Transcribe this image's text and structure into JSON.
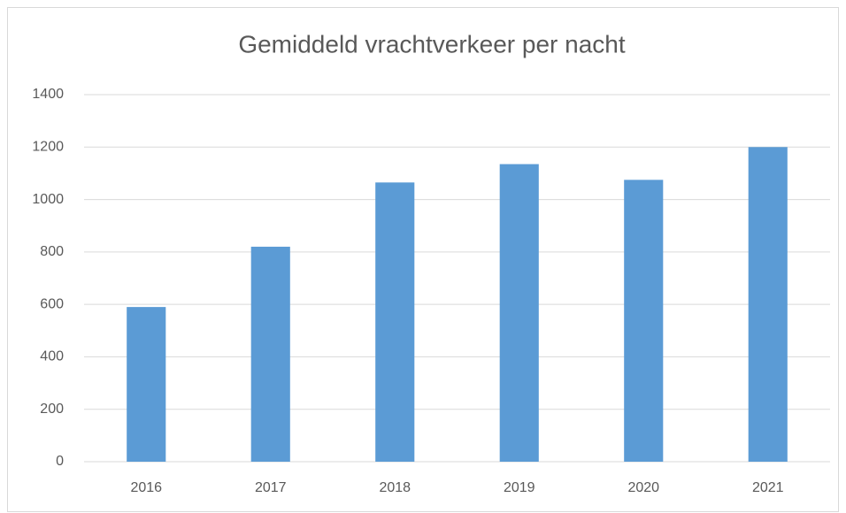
{
  "chart_data": {
    "type": "bar",
    "title": "Gemiddeld vrachtverkeer per nacht",
    "categories": [
      "2016",
      "2017",
      "2018",
      "2019",
      "2020",
      "2021"
    ],
    "values": [
      590,
      820,
      1065,
      1135,
      1075,
      1200
    ],
    "color": "#5b9bd5",
    "ylim": [
      0,
      1400
    ],
    "yticks": [
      0,
      200,
      400,
      600,
      800,
      1000,
      1200,
      1400
    ],
    "grid": true
  }
}
